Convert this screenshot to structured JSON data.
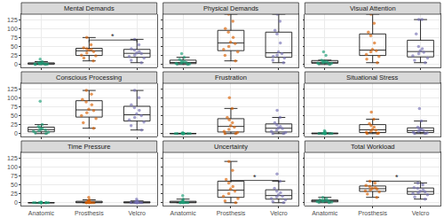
{
  "chart_data": {
    "type": "box",
    "categories": [
      "Anatomic",
      "Prosthesis",
      "Velcro"
    ],
    "colors": [
      "#1b9e77",
      "#d95f02",
      "#7570b3"
    ],
    "ylim": [
      -8,
      140
    ],
    "yticks": [
      0,
      25,
      50,
      75,
      100,
      125
    ],
    "grid": true,
    "panels": [
      {
        "title": "Mental Demands",
        "values": [
          [
            0,
            0,
            1,
            1,
            2,
            2,
            2,
            3,
            4,
            5,
            8,
            15
          ],
          [
            10,
            18,
            24,
            26,
            32,
            36,
            40,
            42,
            44,
            46,
            55,
            75
          ],
          [
            5,
            12,
            18,
            22,
            26,
            30,
            32,
            36,
            40,
            44,
            55,
            70
          ]
        ],
        "significance": [
          {
            "from": "Prosthesis",
            "to": "Velcro",
            "y": 68,
            "label": "*"
          }
        ]
      },
      {
        "title": "Physical Demands",
        "values": [
          [
            0,
            1,
            2,
            3,
            4,
            5,
            6,
            8,
            10,
            14,
            20,
            30
          ],
          [
            10,
            25,
            35,
            42,
            50,
            58,
            62,
            75,
            90,
            100,
            120,
            140
          ],
          [
            5,
            12,
            18,
            22,
            26,
            30,
            35,
            60,
            85,
            95,
            120,
            140
          ]
        ]
      },
      {
        "title": "Visual Attention",
        "values": [
          [
            0,
            2,
            3,
            4,
            5,
            5,
            6,
            8,
            10,
            12,
            25,
            35
          ],
          [
            5,
            15,
            22,
            28,
            35,
            38,
            42,
            60,
            80,
            90,
            115,
            140
          ],
          [
            5,
            12,
            18,
            24,
            30,
            34,
            38,
            44,
            50,
            85,
            125,
            125
          ]
        ]
      },
      {
        "title": "Conscious Processing",
        "values": [
          [
            0,
            2,
            4,
            6,
            8,
            10,
            12,
            14,
            16,
            20,
            25,
            90
          ],
          [
            15,
            30,
            42,
            50,
            58,
            64,
            68,
            80,
            88,
            95,
            110,
            120
          ],
          [
            10,
            22,
            32,
            38,
            45,
            50,
            55,
            65,
            72,
            80,
            100,
            120
          ]
        ]
      },
      {
        "title": "Frustration",
        "values": [
          [
            0,
            0,
            0,
            0,
            0,
            0,
            0,
            0,
            0,
            1,
            1,
            2
          ],
          [
            0,
            0,
            3,
            6,
            12,
            18,
            22,
            30,
            38,
            45,
            70,
            100
          ],
          [
            0,
            0,
            3,
            6,
            10,
            14,
            16,
            20,
            24,
            30,
            45,
            65
          ]
        ]
      },
      {
        "title": "Situational Stress",
        "values": [
          [
            0,
            0,
            0,
            0,
            0,
            0,
            0,
            0,
            1,
            2,
            5,
            8
          ],
          [
            0,
            0,
            2,
            4,
            6,
            9,
            12,
            18,
            22,
            28,
            40,
            60
          ],
          [
            0,
            0,
            2,
            4,
            6,
            8,
            9,
            12,
            14,
            18,
            35,
            70
          ]
        ]
      },
      {
        "title": "Time Pressure",
        "values": [
          [
            0,
            0,
            0,
            0,
            0,
            0,
            0,
            0,
            0,
            0,
            0,
            2
          ],
          [
            0,
            0,
            0,
            0,
            0,
            0,
            1,
            2,
            3,
            5,
            8,
            15
          ],
          [
            0,
            0,
            0,
            0,
            0,
            0,
            0,
            1,
            2,
            3,
            5,
            10
          ]
        ]
      },
      {
        "title": "Uncertainty",
        "values": [
          [
            0,
            0,
            0,
            0,
            0,
            0,
            1,
            2,
            3,
            5,
            10,
            20
          ],
          [
            0,
            5,
            12,
            18,
            25,
            32,
            38,
            45,
            55,
            65,
            90,
            115
          ],
          [
            0,
            3,
            8,
            12,
            16,
            18,
            22,
            28,
            32,
            40,
            60,
            80
          ]
        ],
        "significance": [
          {
            "from": "Prosthesis",
            "to": "Velcro",
            "y": 62,
            "label": "*"
          }
        ]
      },
      {
        "title": "Total Workload",
        "values": [
          [
            0,
            1,
            2,
            3,
            4,
            5,
            5,
            6,
            7,
            8,
            12,
            15
          ],
          [
            15,
            24,
            30,
            33,
            36,
            38,
            40,
            42,
            45,
            48,
            55,
            60
          ],
          [
            10,
            16,
            22,
            25,
            28,
            30,
            32,
            36,
            40,
            42,
            50,
            55
          ]
        ],
        "significance": [
          {
            "from": "Prosthesis",
            "to": "Velcro",
            "y": 60,
            "label": "*"
          }
        ]
      }
    ]
  }
}
